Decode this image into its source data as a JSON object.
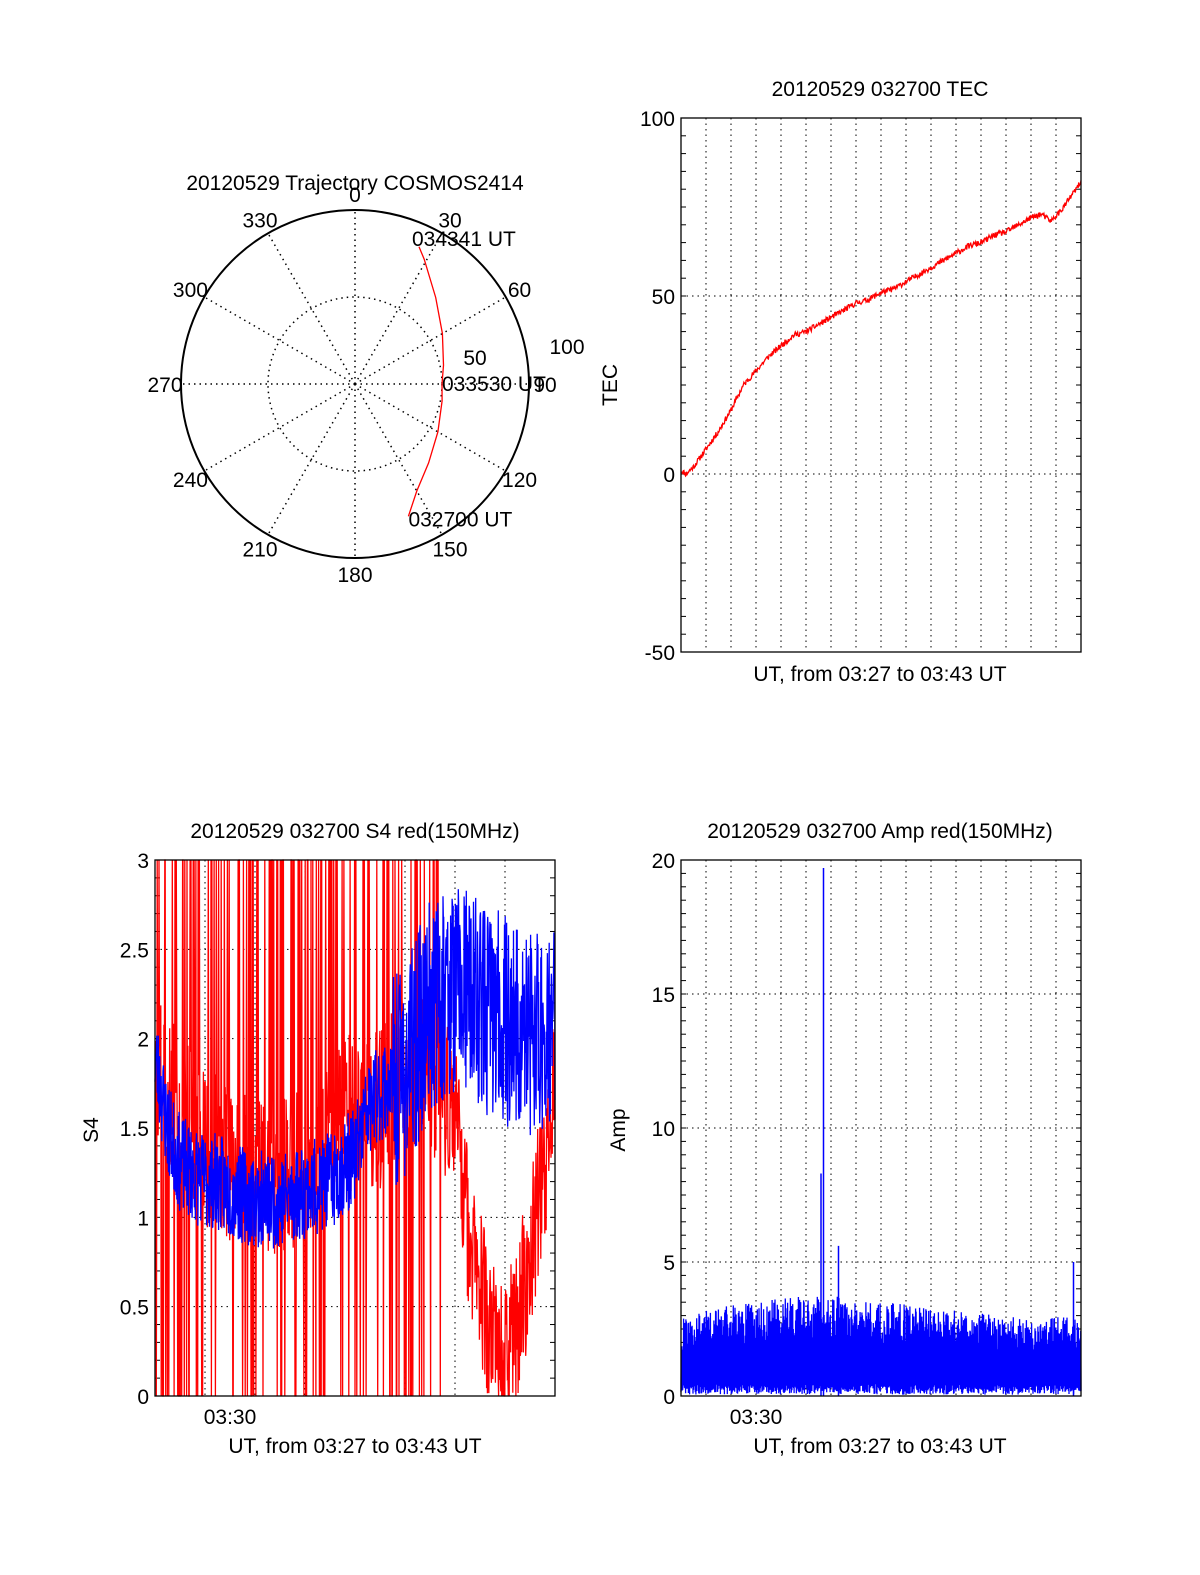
{
  "figure": {
    "background": "#ffffff"
  },
  "colors": {
    "red": "#ff0000",
    "blue": "#0000ff",
    "axis": "#000000",
    "grid": "#000000"
  },
  "chart_data": [
    {
      "id": "trajectory",
      "type": "polar-trajectory",
      "title": "20120529 Trajectory COSMOS2414",
      "radial_max": 100,
      "radial_rings": [
        50,
        100
      ],
      "radial_labels": [
        "50",
        "100"
      ],
      "azimuth_spokes": [
        0,
        30,
        60,
        90,
        120,
        150,
        180,
        210,
        240,
        270,
        300,
        330
      ],
      "azimuth_labels": [
        "0",
        "30",
        "60",
        "90",
        "120",
        "150",
        "180",
        "210",
        "240",
        "270",
        "300",
        "330"
      ],
      "track": [
        {
          "az": 158,
          "zen": 82
        },
        {
          "az": 150,
          "zen": 71
        },
        {
          "az": 137,
          "zen": 62
        },
        {
          "az": 120,
          "zen": 55
        },
        {
          "az": 101,
          "zen": 51
        },
        {
          "az": 90,
          "zen": 50
        },
        {
          "az": 78,
          "zen": 52
        },
        {
          "az": 60,
          "zen": 58
        },
        {
          "az": 43,
          "zen": 68
        },
        {
          "az": 29,
          "zen": 82
        },
        {
          "az": 25,
          "zen": 87
        }
      ],
      "annotations": [
        {
          "text": "034341 UT",
          "at": "end"
        },
        {
          "text": "033530 UT",
          "at": "middle"
        },
        {
          "text": "032700 UT",
          "at": "start"
        }
      ]
    },
    {
      "id": "tec",
      "type": "line",
      "title": "20120529 032700 TEC",
      "ylabel": "TEC",
      "xlabel": "UT, from 03:27 to 03:43 UT",
      "xlim": [
        0,
        16
      ],
      "ylim": [
        -50,
        100
      ],
      "yticks": [
        -50,
        0,
        50,
        100
      ],
      "ytick_labels": [
        "-50",
        "0",
        "50",
        "100"
      ],
      "grid": true,
      "series": [
        {
          "color": "red",
          "x": [
            0,
            0.2,
            0.5,
            1.0,
            1.5,
            2.0,
            2.5,
            3.0,
            3.5,
            4.0,
            4.5,
            5.0,
            5.5,
            6.0,
            6.5,
            7.0,
            7.5,
            8.0,
            8.5,
            9.0,
            9.5,
            10.0,
            10.5,
            11.0,
            11.5,
            12.0,
            12.5,
            13.0,
            13.5,
            14.0,
            14.4,
            14.8,
            15.2,
            15.6,
            16.0
          ],
          "y": [
            1,
            0,
            2,
            7,
            12,
            18,
            25,
            29,
            33,
            36,
            39,
            40,
            42,
            44,
            46,
            48,
            49,
            51,
            52,
            54,
            56,
            58,
            60,
            62,
            64,
            65,
            67,
            68,
            70,
            72,
            73,
            71,
            74,
            78,
            82
          ]
        }
      ]
    },
    {
      "id": "s4",
      "type": "line",
      "title": "20120529 032700 S4 red(150MHz)",
      "ylabel": "S4",
      "xlabel": "UT, from 03:27 to 03:43 UT",
      "xlim": [
        0,
        16
      ],
      "ylim": [
        0,
        3
      ],
      "yticks": [
        0,
        0.5,
        1,
        1.5,
        2,
        2.5,
        3
      ],
      "ytick_labels": [
        "0",
        "0.5",
        "1",
        "1.5",
        "2",
        "2.5",
        "3"
      ],
      "xtick_value": 3,
      "xtick_label": "03:30",
      "grid": true,
      "series": [
        {
          "color": "red",
          "x": [
            0,
            1,
            2,
            3,
            4,
            5,
            6,
            7,
            8,
            9,
            10,
            11,
            12,
            12.5,
            13,
            13.5,
            14,
            14.5,
            15,
            15.5,
            16
          ],
          "y": [
            1.8,
            1.6,
            1.4,
            1.3,
            1.2,
            1.2,
            1.3,
            1.5,
            1.6,
            1.6,
            1.8,
            1.8,
            1.6,
            1.0,
            0.6,
            0.3,
            0.2,
            0.4,
            0.8,
            1.2,
            1.8
          ]
        },
        {
          "color": "blue",
          "x": [
            0,
            0.5,
            1,
            1.5,
            2,
            2.5,
            3,
            4,
            5,
            6,
            7,
            8,
            8.5,
            9,
            10,
            10.5,
            11,
            12,
            13,
            14,
            15,
            16
          ],
          "y": [
            1.9,
            1.5,
            1.3,
            1.25,
            1.2,
            1.2,
            1.15,
            1.1,
            1.1,
            1.15,
            1.2,
            1.35,
            1.6,
            1.7,
            1.8,
            2.0,
            2.2,
            2.3,
            2.2,
            2.1,
            2.0,
            2.1
          ]
        }
      ]
    },
    {
      "id": "amp",
      "type": "line",
      "title": "20120529 032700 Amp red(150MHz)",
      "ylabel": "Amp",
      "xlabel": "UT, from 03:27 to 03:43 UT",
      "xlim": [
        0,
        16
      ],
      "ylim": [
        0,
        20
      ],
      "yticks": [
        0,
        5,
        10,
        15,
        20
      ],
      "ytick_labels": [
        "0",
        "5",
        "10",
        "15",
        "20"
      ],
      "xtick_value": 3,
      "xtick_label": "03:30",
      "grid": true,
      "series": [
        {
          "color": "blue",
          "x": [
            0,
            1,
            2,
            3,
            4,
            5,
            5.5,
            6,
            7,
            8,
            9,
            10,
            11,
            12,
            13,
            14,
            15,
            16
          ],
          "y": [
            2.6,
            2.9,
            3.1,
            3.2,
            3.3,
            3.4,
            3.5,
            3.4,
            3.3,
            3.2,
            3.1,
            3.0,
            2.9,
            2.8,
            2.7,
            2.6,
            2.7,
            2.8
          ]
        }
      ],
      "spikes": [
        {
          "x": 5.7,
          "y": 19.7
        },
        {
          "x": 5.6,
          "y": 8.3
        },
        {
          "x": 6.3,
          "y": 5.6
        },
        {
          "x": 15.7,
          "y": 5.0
        }
      ]
    }
  ]
}
